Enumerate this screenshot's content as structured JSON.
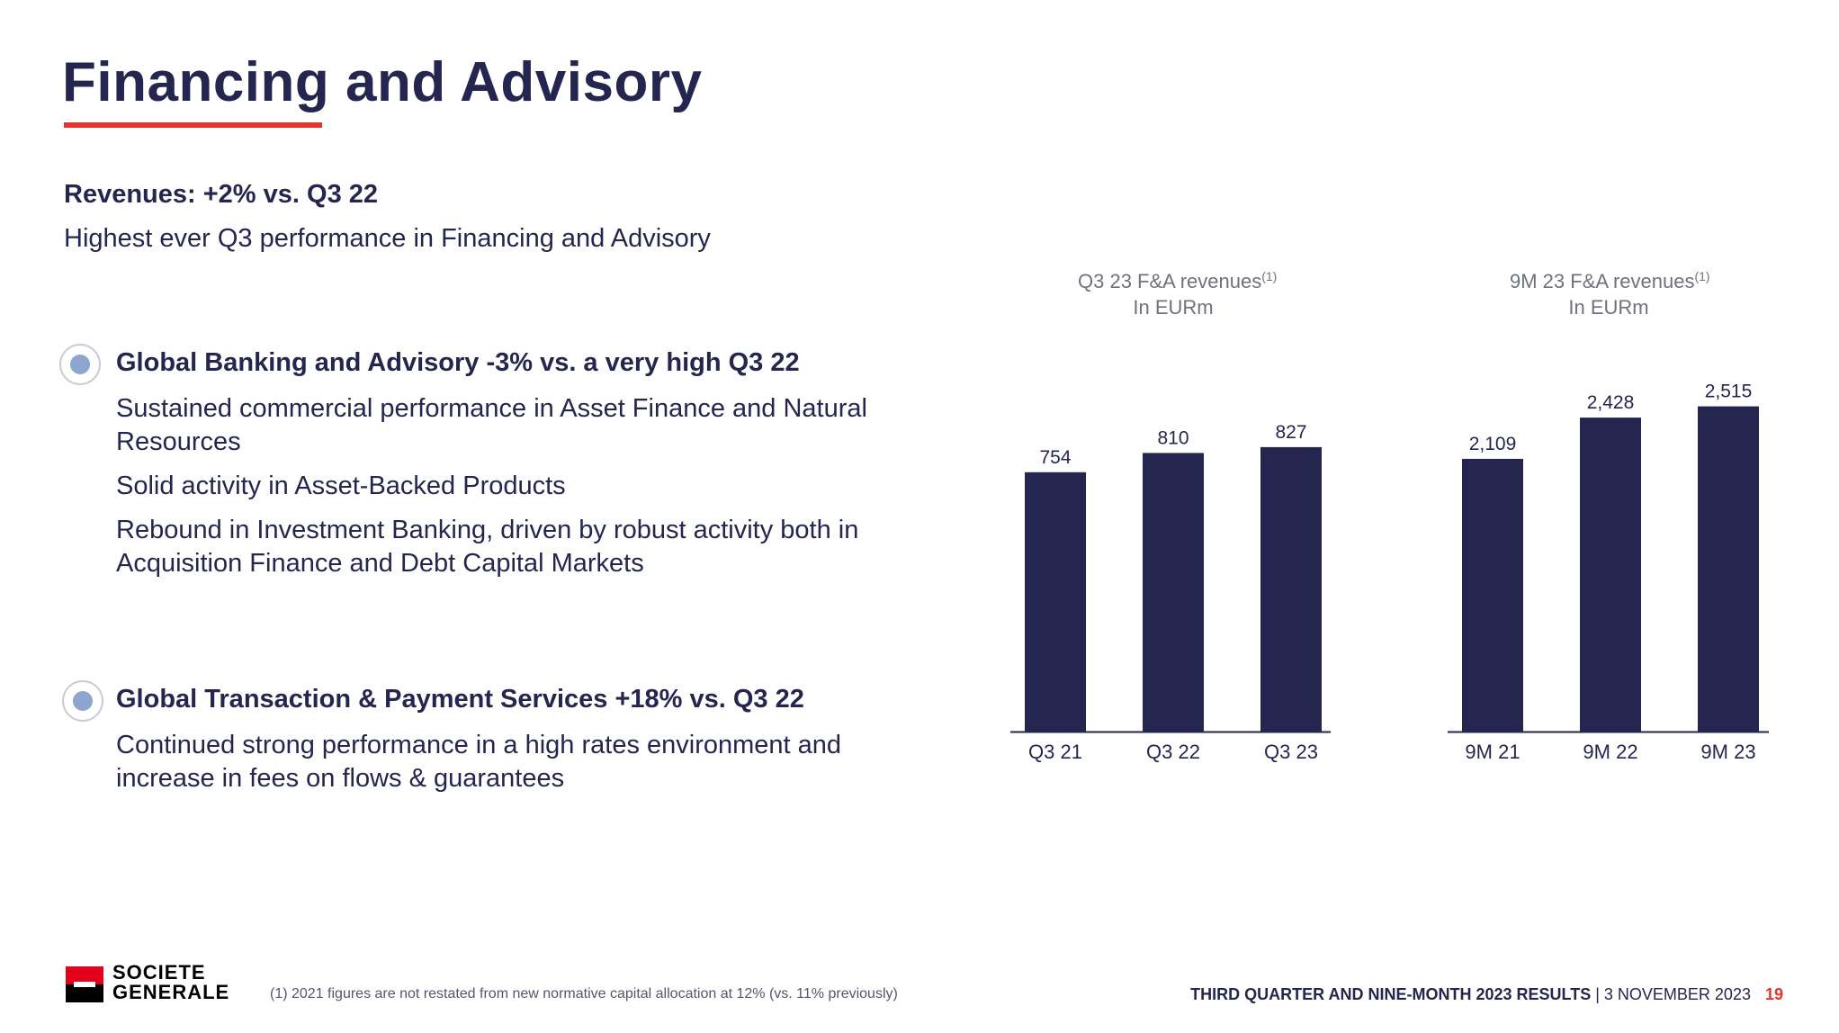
{
  "slide": {
    "title": "Financing and Advisory",
    "revenues_heading": "Revenues: +2% vs. Q3 22",
    "revenues_sub": "Highest ever Q3 performance in Financing and Advisory"
  },
  "sections": [
    {
      "heading": "Global Banking and Advisory -3% vs. a very high Q3 22",
      "points": [
        "Sustained commercial performance in Asset Finance and Natural Resources",
        "Solid activity in Asset-Backed Products",
        "Rebound in Investment Banking, driven by robust activity both in Acquisition Finance and Debt Capital Markets"
      ]
    },
    {
      "heading": "Global Transaction & Payment Services +18% vs. Q3 22",
      "points": [
        "Continued strong performance in a high rates environment and increase in fees on flows & guarantees"
      ]
    }
  ],
  "chart_data": [
    {
      "type": "bar",
      "title": "Q3 23 F&A revenues",
      "title_sup": "(1)",
      "subtitle": "In EURm",
      "categories": [
        "Q3 21",
        "Q3 22",
        "Q3 23"
      ],
      "values": [
        754,
        810,
        827
      ],
      "value_labels": [
        "754",
        "810",
        "827"
      ],
      "ylim": [
        0,
        900
      ],
      "grid": false,
      "legend": "none"
    },
    {
      "type": "bar",
      "title": "9M 23 F&A revenues",
      "title_sup": "(1)",
      "subtitle": "In EURm",
      "categories": [
        "9M 21",
        "9M 22",
        "9M 23"
      ],
      "values": [
        2109,
        2428,
        2515
      ],
      "value_labels": [
        "2,109",
        "2,428",
        "2,515"
      ],
      "ylim": [
        0,
        2700
      ],
      "grid": false,
      "legend": "none"
    }
  ],
  "colors": {
    "navy": "#24264f",
    "accent_red": "#e2342d",
    "bullet_fill": "#8da5cf",
    "muted_text": "#6f717e"
  },
  "footer": {
    "logo_line1": "SOCIETE",
    "logo_line2": "GENERALE",
    "footnote": "(1) 2021 figures are not restated from new normative capital allocation at 12% (vs. 11% previously)",
    "report_title": "THIRD QUARTER AND NINE-MONTH 2023 RESULTS",
    "separator": " | ",
    "date": "3 NOVEMBER 2023",
    "page_number": "19"
  }
}
